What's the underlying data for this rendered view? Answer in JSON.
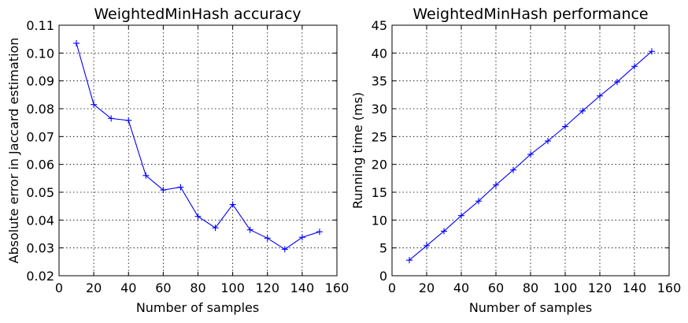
{
  "chart_data": [
    {
      "type": "line",
      "title": "WeightedMinHash accuracy",
      "xlabel": "Number of samples",
      "ylabel": "Absolute error in Jaccard estimation",
      "xlim": [
        0,
        160
      ],
      "ylim": [
        0.02,
        0.11
      ],
      "xticks": [
        "0",
        "20",
        "40",
        "60",
        "80",
        "100",
        "120",
        "140",
        "160"
      ],
      "yticks": [
        "0.02",
        "0.03",
        "0.04",
        "0.05",
        "0.06",
        "0.07",
        "0.08",
        "0.09",
        "0.10",
        "0.11"
      ],
      "grid": true,
      "series": [
        {
          "color": "#0000ff",
          "marker": "plus",
          "x": [
            10,
            20,
            30,
            40,
            50,
            60,
            70,
            80,
            90,
            100,
            110,
            120,
            130,
            140,
            150
          ],
          "y": [
            0.1035,
            0.0815,
            0.0765,
            0.0758,
            0.056,
            0.0508,
            0.0518,
            0.0413,
            0.0372,
            0.0456,
            0.0365,
            0.0335,
            0.0295,
            0.0338,
            0.0358
          ]
        }
      ]
    },
    {
      "type": "line",
      "title": "WeightedMinHash performance",
      "xlabel": "Number of samples",
      "ylabel": "Running time (ms)",
      "xlim": [
        0,
        160
      ],
      "ylim": [
        0,
        45
      ],
      "xticks": [
        "0",
        "20",
        "40",
        "60",
        "80",
        "100",
        "120",
        "140",
        "160"
      ],
      "yticks": [
        "0",
        "5",
        "10",
        "15",
        "20",
        "25",
        "30",
        "35",
        "40",
        "45"
      ],
      "grid": true,
      "series": [
        {
          "color": "#0000ff",
          "marker": "plus",
          "x": [
            10,
            20,
            30,
            40,
            50,
            60,
            70,
            80,
            90,
            100,
            110,
            120,
            130,
            140,
            150
          ],
          "y": [
            2.8,
            5.4,
            8.0,
            10.8,
            13.4,
            16.3,
            19.0,
            21.8,
            24.2,
            26.8,
            29.6,
            32.3,
            34.8,
            37.6,
            40.3
          ]
        }
      ]
    }
  ]
}
